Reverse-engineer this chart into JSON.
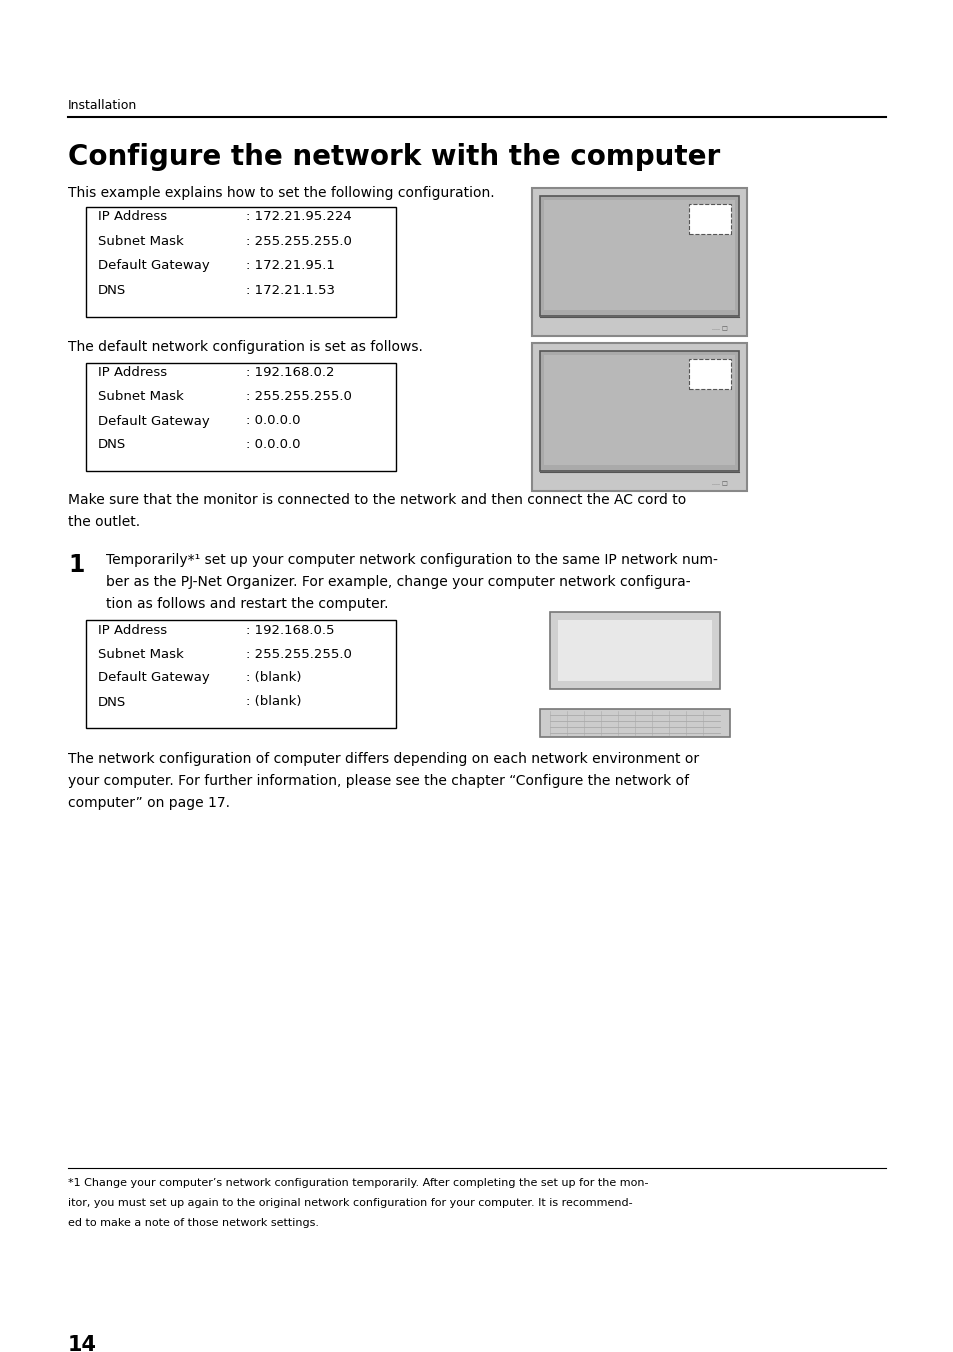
{
  "background_color": "#ffffff",
  "page_number": "14",
  "section_label": "Installation",
  "title": "Configure the network with the computer",
  "intro_text": "This example explains how to set the following configuration.",
  "box1_lines": [
    [
      "IP Address",
      ": 172.21.95.224"
    ],
    [
      "Subnet Mask",
      ": 255.255.255.0"
    ],
    [
      "Default Gateway",
      ": 172.21.95.1"
    ],
    [
      "DNS",
      ": 172.21.1.53"
    ]
  ],
  "default_text": "The default network configuration is set as follows.",
  "box2_lines": [
    [
      "IP Address",
      ": 192.168.0.2"
    ],
    [
      "Subnet Mask",
      ": 255.255.255.0"
    ],
    [
      "Default Gateway",
      ": 0.0.0.0"
    ],
    [
      "DNS",
      ": 0.0.0.0"
    ]
  ],
  "make_sure_text": "Make sure that the monitor is connected to the network and then connect the AC cord to\nthe outlet.",
  "step1_bullet": "1",
  "step1_text": "Temporarily*¹ set up your computer network configuration to the same IP network num-\nber as the PJ-Net Organizer. For example, change your computer network configura-\ntion as follows and restart the computer.",
  "box3_lines": [
    [
      "IP Address",
      ": 192.168.0.5"
    ],
    [
      "Subnet Mask",
      ": 255.255.255.0"
    ],
    [
      "Default Gateway",
      ": (blank)"
    ],
    [
      "DNS",
      ": (blank)"
    ]
  ],
  "network_config_text": "The network configuration of computer differs depending on each network environment or\nyour computer. For further information, please see the chapter “Configure the network of\ncomputer” on page 17.",
  "footnote_lines": [
    "*1 Change your computer’s network configuration temporarily. After completing the set up for the mon-",
    "itor, you must set up again to the original network configuration for your computer. It is recommend-",
    "ed to make a note of those network settings."
  ]
}
